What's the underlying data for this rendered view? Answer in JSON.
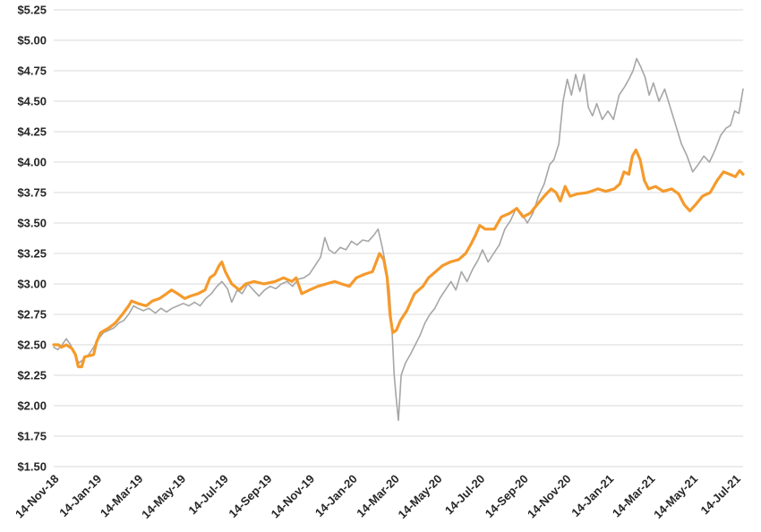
{
  "chart_data": {
    "type": "line",
    "title": "",
    "xlabel": "",
    "ylabel": "",
    "grid": true,
    "legend": "none",
    "ylim": [
      1.5,
      5.25
    ],
    "yticks": [
      1.5,
      1.75,
      2.0,
      2.25,
      2.5,
      2.75,
      3.0,
      3.25,
      3.5,
      3.75,
      4.0,
      4.25,
      4.5,
      4.75,
      5.0,
      5.25
    ],
    "ytick_labels": [
      "$1.50",
      "$1.75",
      "$2.00",
      "$2.25",
      "$2.50",
      "$2.75",
      "$3.00",
      "$3.25",
      "$3.50",
      "$3.75",
      "$4.00",
      "$4.25",
      "$4.50",
      "$4.75",
      "$5.00",
      "$5.25"
    ],
    "xlim": [
      "2018-11-14",
      "2021-07-25"
    ],
    "xticks": [
      "2018-11-14",
      "2019-01-14",
      "2019-03-14",
      "2019-05-14",
      "2019-07-14",
      "2019-09-14",
      "2019-11-14",
      "2020-01-14",
      "2020-03-14",
      "2020-05-14",
      "2020-07-14",
      "2020-09-14",
      "2020-11-14",
      "2021-01-14",
      "2021-03-14",
      "2021-05-14",
      "2021-07-14"
    ],
    "xtick_labels": [
      "14-Nov-18",
      "14-Jan-19",
      "14-Mar-19",
      "14-May-19",
      "14-Jul-19",
      "14-Sep-19",
      "14-Nov-19",
      "14-Jan-20",
      "14-Mar-20",
      "14-May-20",
      "14-Jul-20",
      "14-Sep-20",
      "14-Nov-20",
      "14-Jan-21",
      "14-Mar-21",
      "14-May-21",
      "14-Jul-21"
    ],
    "series": [
      {
        "color": "#a6a6a6",
        "points": [
          [
            "2018-11-14",
            2.48
          ],
          [
            "2018-11-20",
            2.46
          ],
          [
            "2018-11-26",
            2.5
          ],
          [
            "2018-12-02",
            2.55
          ],
          [
            "2018-12-08",
            2.5
          ],
          [
            "2018-12-14",
            2.42
          ],
          [
            "2018-12-20",
            2.35
          ],
          [
            "2018-12-26",
            2.38
          ],
          [
            "2019-01-03",
            2.42
          ],
          [
            "2019-01-10",
            2.48
          ],
          [
            "2019-01-17",
            2.55
          ],
          [
            "2019-01-24",
            2.6
          ],
          [
            "2019-02-01",
            2.62
          ],
          [
            "2019-02-08",
            2.64
          ],
          [
            "2019-02-15",
            2.68
          ],
          [
            "2019-02-22",
            2.7
          ],
          [
            "2019-03-01",
            2.75
          ],
          [
            "2019-03-08",
            2.82
          ],
          [
            "2019-03-14",
            2.8
          ],
          [
            "2019-03-22",
            2.78
          ],
          [
            "2019-03-30",
            2.8
          ],
          [
            "2019-04-08",
            2.76
          ],
          [
            "2019-04-16",
            2.8
          ],
          [
            "2019-04-24",
            2.77
          ],
          [
            "2019-05-02",
            2.8
          ],
          [
            "2019-05-10",
            2.82
          ],
          [
            "2019-05-18",
            2.84
          ],
          [
            "2019-05-26",
            2.82
          ],
          [
            "2019-06-03",
            2.85
          ],
          [
            "2019-06-11",
            2.82
          ],
          [
            "2019-06-19",
            2.88
          ],
          [
            "2019-06-27",
            2.92
          ],
          [
            "2019-07-05",
            2.98
          ],
          [
            "2019-07-12",
            3.02
          ],
          [
            "2019-07-20",
            2.96
          ],
          [
            "2019-07-26",
            2.85
          ],
          [
            "2019-08-03",
            2.95
          ],
          [
            "2019-08-10",
            2.92
          ],
          [
            "2019-08-18",
            3.0
          ],
          [
            "2019-08-26",
            2.95
          ],
          [
            "2019-09-03",
            2.9
          ],
          [
            "2019-09-11",
            2.95
          ],
          [
            "2019-09-19",
            2.98
          ],
          [
            "2019-09-27",
            2.96
          ],
          [
            "2019-10-05",
            3.0
          ],
          [
            "2019-10-13",
            3.02
          ],
          [
            "2019-10-21",
            2.98
          ],
          [
            "2019-10-29",
            3.04
          ],
          [
            "2019-11-06",
            3.05
          ],
          [
            "2019-11-14",
            3.08
          ],
          [
            "2019-11-22",
            3.15
          ],
          [
            "2019-11-30",
            3.22
          ],
          [
            "2019-12-06",
            3.38
          ],
          [
            "2019-12-12",
            3.28
          ],
          [
            "2019-12-20",
            3.25
          ],
          [
            "2019-12-28",
            3.3
          ],
          [
            "2020-01-05",
            3.28
          ],
          [
            "2020-01-13",
            3.35
          ],
          [
            "2020-01-21",
            3.32
          ],
          [
            "2020-01-29",
            3.36
          ],
          [
            "2020-02-06",
            3.35
          ],
          [
            "2020-02-14",
            3.4
          ],
          [
            "2020-02-20",
            3.45
          ],
          [
            "2020-02-26",
            3.3
          ],
          [
            "2020-03-02",
            3.15
          ],
          [
            "2020-03-07",
            2.95
          ],
          [
            "2020-03-11",
            2.6
          ],
          [
            "2020-03-14",
            2.25
          ],
          [
            "2020-03-17",
            2.05
          ],
          [
            "2020-03-20",
            1.88
          ],
          [
            "2020-03-24",
            2.25
          ],
          [
            "2020-03-30",
            2.35
          ],
          [
            "2020-04-06",
            2.42
          ],
          [
            "2020-04-13",
            2.5
          ],
          [
            "2020-04-20",
            2.58
          ],
          [
            "2020-04-27",
            2.68
          ],
          [
            "2020-05-04",
            2.75
          ],
          [
            "2020-05-11",
            2.8
          ],
          [
            "2020-05-18",
            2.88
          ],
          [
            "2020-05-26",
            2.95
          ],
          [
            "2020-06-03",
            3.02
          ],
          [
            "2020-06-10",
            2.95
          ],
          [
            "2020-06-18",
            3.1
          ],
          [
            "2020-06-26",
            3.02
          ],
          [
            "2020-07-04",
            3.12
          ],
          [
            "2020-07-12",
            3.2
          ],
          [
            "2020-07-18",
            3.28
          ],
          [
            "2020-07-26",
            3.18
          ],
          [
            "2020-08-03",
            3.25
          ],
          [
            "2020-08-11",
            3.32
          ],
          [
            "2020-08-19",
            3.45
          ],
          [
            "2020-08-27",
            3.52
          ],
          [
            "2020-09-04",
            3.62
          ],
          [
            "2020-09-12",
            3.58
          ],
          [
            "2020-09-20",
            3.5
          ],
          [
            "2020-09-28",
            3.58
          ],
          [
            "2020-10-06",
            3.72
          ],
          [
            "2020-10-14",
            3.82
          ],
          [
            "2020-10-22",
            3.98
          ],
          [
            "2020-10-28",
            4.02
          ],
          [
            "2020-11-04",
            4.15
          ],
          [
            "2020-11-10",
            4.5
          ],
          [
            "2020-11-16",
            4.68
          ],
          [
            "2020-11-22",
            4.55
          ],
          [
            "2020-11-28",
            4.72
          ],
          [
            "2020-12-04",
            4.58
          ],
          [
            "2020-12-10",
            4.72
          ],
          [
            "2020-12-16",
            4.45
          ],
          [
            "2020-12-22",
            4.38
          ],
          [
            "2020-12-28",
            4.48
          ],
          [
            "2021-01-05",
            4.35
          ],
          [
            "2021-01-13",
            4.42
          ],
          [
            "2021-01-21",
            4.35
          ],
          [
            "2021-01-29",
            4.55
          ],
          [
            "2021-02-06",
            4.62
          ],
          [
            "2021-02-12",
            4.68
          ],
          [
            "2021-02-18",
            4.75
          ],
          [
            "2021-02-23",
            4.85
          ],
          [
            "2021-03-01",
            4.78
          ],
          [
            "2021-03-07",
            4.7
          ],
          [
            "2021-03-13",
            4.55
          ],
          [
            "2021-03-19",
            4.65
          ],
          [
            "2021-03-27",
            4.5
          ],
          [
            "2021-04-04",
            4.6
          ],
          [
            "2021-04-12",
            4.45
          ],
          [
            "2021-04-20",
            4.3
          ],
          [
            "2021-04-28",
            4.15
          ],
          [
            "2021-05-06",
            4.05
          ],
          [
            "2021-05-14",
            3.92
          ],
          [
            "2021-05-22",
            3.98
          ],
          [
            "2021-05-30",
            4.05
          ],
          [
            "2021-06-07",
            4.0
          ],
          [
            "2021-06-15",
            4.1
          ],
          [
            "2021-06-23",
            4.22
          ],
          [
            "2021-07-01",
            4.28
          ],
          [
            "2021-07-07",
            4.3
          ],
          [
            "2021-07-13",
            4.42
          ],
          [
            "2021-07-19",
            4.4
          ],
          [
            "2021-07-25",
            4.6
          ]
        ]
      },
      {
        "color": "#f59a2c",
        "points": [
          [
            "2018-11-14",
            2.5
          ],
          [
            "2018-11-21",
            2.5
          ],
          [
            "2018-11-25",
            2.48
          ],
          [
            "2018-12-02",
            2.5
          ],
          [
            "2018-12-10",
            2.47
          ],
          [
            "2018-12-15",
            2.42
          ],
          [
            "2018-12-19",
            2.32
          ],
          [
            "2018-12-24",
            2.32
          ],
          [
            "2018-12-28",
            2.4
          ],
          [
            "2019-01-10",
            2.42
          ],
          [
            "2019-01-14",
            2.52
          ],
          [
            "2019-01-20",
            2.6
          ],
          [
            "2019-02-01",
            2.64
          ],
          [
            "2019-02-10",
            2.68
          ],
          [
            "2019-02-20",
            2.75
          ],
          [
            "2019-03-01",
            2.82
          ],
          [
            "2019-03-05",
            2.86
          ],
          [
            "2019-03-14",
            2.84
          ],
          [
            "2019-03-26",
            2.82
          ],
          [
            "2019-04-04",
            2.86
          ],
          [
            "2019-04-14",
            2.88
          ],
          [
            "2019-04-24",
            2.92
          ],
          [
            "2019-05-01",
            2.95
          ],
          [
            "2019-05-10",
            2.92
          ],
          [
            "2019-05-20",
            2.88
          ],
          [
            "2019-05-28",
            2.9
          ],
          [
            "2019-06-08",
            2.92
          ],
          [
            "2019-06-18",
            2.95
          ],
          [
            "2019-06-25",
            3.05
          ],
          [
            "2019-07-02",
            3.08
          ],
          [
            "2019-07-08",
            3.15
          ],
          [
            "2019-07-12",
            3.18
          ],
          [
            "2019-07-17",
            3.1
          ],
          [
            "2019-07-26",
            3.0
          ],
          [
            "2019-08-06",
            2.95
          ],
          [
            "2019-08-15",
            3.0
          ],
          [
            "2019-08-27",
            3.02
          ],
          [
            "2019-09-10",
            3.0
          ],
          [
            "2019-09-26",
            3.02
          ],
          [
            "2019-10-08",
            3.05
          ],
          [
            "2019-10-20",
            3.02
          ],
          [
            "2019-10-26",
            3.05
          ],
          [
            "2019-11-03",
            2.92
          ],
          [
            "2019-11-14",
            2.95
          ],
          [
            "2019-11-26",
            2.98
          ],
          [
            "2019-12-08",
            3.0
          ],
          [
            "2019-12-20",
            3.02
          ],
          [
            "2019-12-30",
            3.0
          ],
          [
            "2020-01-10",
            2.98
          ],
          [
            "2020-01-20",
            3.05
          ],
          [
            "2020-02-01",
            3.08
          ],
          [
            "2020-02-12",
            3.1
          ],
          [
            "2020-02-22",
            3.25
          ],
          [
            "2020-02-28",
            3.2
          ],
          [
            "2020-03-04",
            3.05
          ],
          [
            "2020-03-08",
            2.75
          ],
          [
            "2020-03-12",
            2.6
          ],
          [
            "2020-03-17",
            2.62
          ],
          [
            "2020-03-23",
            2.7
          ],
          [
            "2020-04-01",
            2.78
          ],
          [
            "2020-04-12",
            2.92
          ],
          [
            "2020-04-24",
            2.98
          ],
          [
            "2020-05-02",
            3.05
          ],
          [
            "2020-05-12",
            3.1
          ],
          [
            "2020-05-22",
            3.15
          ],
          [
            "2020-06-02",
            3.18
          ],
          [
            "2020-06-14",
            3.2
          ],
          [
            "2020-06-24",
            3.25
          ],
          [
            "2020-07-01",
            3.32
          ],
          [
            "2020-07-08",
            3.4
          ],
          [
            "2020-07-14",
            3.48
          ],
          [
            "2020-07-22",
            3.45
          ],
          [
            "2020-08-04",
            3.45
          ],
          [
            "2020-08-14",
            3.55
          ],
          [
            "2020-08-26",
            3.58
          ],
          [
            "2020-09-05",
            3.62
          ],
          [
            "2020-09-14",
            3.55
          ],
          [
            "2020-09-24",
            3.58
          ],
          [
            "2020-10-04",
            3.65
          ],
          [
            "2020-10-14",
            3.72
          ],
          [
            "2020-10-24",
            3.78
          ],
          [
            "2020-10-31",
            3.75
          ],
          [
            "2020-11-06",
            3.68
          ],
          [
            "2020-11-13",
            3.8
          ],
          [
            "2020-11-20",
            3.72
          ],
          [
            "2020-12-01",
            3.74
          ],
          [
            "2020-12-15",
            3.75
          ],
          [
            "2020-12-30",
            3.78
          ],
          [
            "2021-01-10",
            3.76
          ],
          [
            "2021-01-22",
            3.78
          ],
          [
            "2021-01-30",
            3.82
          ],
          [
            "2021-02-05",
            3.92
          ],
          [
            "2021-02-12",
            3.9
          ],
          [
            "2021-02-17",
            4.05
          ],
          [
            "2021-02-22",
            4.1
          ],
          [
            "2021-02-28",
            4.02
          ],
          [
            "2021-03-06",
            3.85
          ],
          [
            "2021-03-12",
            3.78
          ],
          [
            "2021-03-22",
            3.8
          ],
          [
            "2021-04-02",
            3.76
          ],
          [
            "2021-04-14",
            3.78
          ],
          [
            "2021-04-24",
            3.74
          ],
          [
            "2021-05-02",
            3.65
          ],
          [
            "2021-05-10",
            3.6
          ],
          [
            "2021-05-18",
            3.65
          ],
          [
            "2021-05-28",
            3.72
          ],
          [
            "2021-06-08",
            3.75
          ],
          [
            "2021-06-18",
            3.85
          ],
          [
            "2021-06-27",
            3.92
          ],
          [
            "2021-07-06",
            3.9
          ],
          [
            "2021-07-14",
            3.88
          ],
          [
            "2021-07-20",
            3.93
          ],
          [
            "2021-07-25",
            3.9
          ]
        ]
      }
    ]
  }
}
